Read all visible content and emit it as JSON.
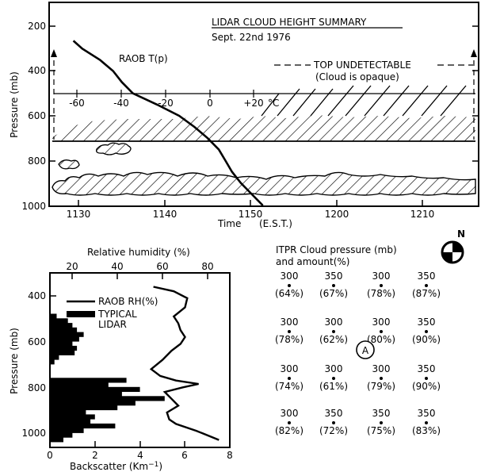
{
  "top_chart": {
    "title": "LIDAR CLOUD HEIGHT SUMMARY",
    "subtitle": "Sept. 22nd 1976",
    "ylabel": "Pressure (mb)",
    "xlabel": "Time",
    "xlabel_unit": "(E.S.T.)",
    "raob_label": "RAOB T(p)",
    "top_note_1": "TOP UNDETECTABLE",
    "top_note_2": "(Cloud is opaque)",
    "temp_unit": "°C",
    "y_ticks": [
      "200",
      "400",
      "600",
      "800",
      "1000"
    ],
    "x_ticks": [
      "1130",
      "1140",
      "1150",
      "1200",
      "1210"
    ],
    "temp_ticks": [
      "-60",
      "-40",
      "-20",
      "0",
      "+20"
    ]
  },
  "bottom_chart": {
    "top_axis_label": "Relative humidity (%)",
    "bottom_axis_label": "Backscatter (Km",
    "bottom_axis_exp": "−1",
    "bottom_axis_close": ")",
    "ylabel": "Pressure (mb)",
    "legend_rh": "RAOB RH(%)",
    "legend_lidar_1": "TYPICAL",
    "legend_lidar_2": "LIDAR",
    "rh_ticks": [
      "20",
      "40",
      "60",
      "80"
    ],
    "bs_ticks": [
      "0",
      "2",
      "4",
      "6",
      "8"
    ],
    "y_ticks": [
      "400",
      "600",
      "800",
      "1000"
    ]
  },
  "itpr": {
    "title_1": "ITPR Cloud pressure (mb)",
    "title_2": "and amount(%)",
    "north_label": "N",
    "marker_label": "A",
    "rows": [
      [
        [
          "300",
          "(64%)"
        ],
        [
          "350",
          "(67%)"
        ],
        [
          "300",
          "(78%)"
        ],
        [
          "350",
          "(87%)"
        ]
      ],
      [
        [
          "300",
          "(78%)"
        ],
        [
          "300",
          "(62%)"
        ],
        [
          "300",
          "(80%)"
        ],
        [
          "350",
          "(90%)"
        ]
      ],
      [
        [
          "300",
          "(74%)"
        ],
        [
          "300",
          "(61%)"
        ],
        [
          "300",
          "(79%)"
        ],
        [
          "350",
          "(90%)"
        ]
      ],
      [
        [
          "300",
          "(82%)"
        ],
        [
          "350",
          "(72%)"
        ],
        [
          "350",
          "(75%)"
        ],
        [
          "350",
          "(83%)"
        ]
      ]
    ]
  },
  "chart_data": [
    {
      "type": "line",
      "title": "LIDAR CLOUD HEIGHT SUMMARY",
      "subtitle": "Sept. 22nd 1976",
      "xlabel": "Time (E.S.T.)",
      "ylabel": "Pressure (mb)",
      "y_inverted": true,
      "ylim": [
        1000,
        150
      ],
      "x_ticks": [
        "1130",
        "1140",
        "1150",
        "1200",
        "1210"
      ],
      "series": [
        {
          "name": "RAOB T(p)",
          "x_unit": "°C",
          "xlim": [
            -70,
            30
          ],
          "points": [
            [
              -62,
              265
            ],
            [
              -58,
              300
            ],
            [
              -50,
              350
            ],
            [
              -44,
              400
            ],
            [
              -40,
              450
            ],
            [
              -35,
              500
            ],
            [
              -24,
              550
            ],
            [
              -14,
              600
            ],
            [
              -7,
              650
            ],
            [
              -1,
              700
            ],
            [
              4,
              750
            ],
            [
              7,
              800
            ],
            [
              10,
              850
            ],
            [
              14,
              900
            ],
            [
              19,
              950
            ],
            [
              24,
              1000
            ]
          ]
        }
      ],
      "cloud_layers": [
        {
          "type": "opaque top layer",
          "time_start": "1127",
          "time_end": "1215",
          "pressure_base_mb": 700,
          "pressure_top_mb": 500
        },
        {
          "type": "small cell",
          "pressure_mb": 760
        },
        {
          "type": "cell",
          "pressure_mb": 820
        },
        {
          "type": "lower layer",
          "time_start": "1127",
          "time_end": "1215",
          "pressure_base_mb": 950,
          "pressure_top_mb": 860
        }
      ]
    },
    {
      "type": "line",
      "x_top_label": "Relative humidity (%)",
      "x_top_lim": [
        10,
        90
      ],
      "x_bottom_label": "Backscatter (Km−1)",
      "x_bottom_lim": [
        0,
        8
      ],
      "ylabel": "Pressure (mb)",
      "y_inverted": true,
      "ylim": [
        1050,
        330
      ],
      "series": [
        {
          "name": "RAOB RH(%)",
          "axis": "top",
          "points": [
            [
              56,
              360
            ],
            [
              65,
              380
            ],
            [
              71,
              410
            ],
            [
              70,
              450
            ],
            [
              65,
              490
            ],
            [
              67,
              520
            ],
            [
              68,
              550
            ],
            [
              70,
              580
            ],
            [
              68,
              610
            ],
            [
              64,
              640
            ],
            [
              60,
              680
            ],
            [
              55,
              720
            ],
            [
              59,
              750
            ],
            [
              66,
              770
            ],
            [
              76,
              785
            ],
            [
              69,
              800
            ],
            [
              61,
              820
            ],
            [
              64,
              850
            ],
            [
              67,
              880
            ],
            [
              62,
              910
            ],
            [
              63,
              940
            ],
            [
              66,
              960
            ],
            [
              75,
              990
            ],
            [
              85,
              1030
            ]
          ]
        },
        {
          "name": "TYPICAL LIDAR",
          "axis": "bottom",
          "type": "bar",
          "points": [
            [
              0.3,
              490
            ],
            [
              0.8,
              510
            ],
            [
              1.0,
              530
            ],
            [
              1.2,
              550
            ],
            [
              1.5,
              570
            ],
            [
              1.3,
              590
            ],
            [
              1.0,
              610
            ],
            [
              1.2,
              630
            ],
            [
              1.1,
              650
            ],
            [
              0.4,
              670
            ],
            [
              0.2,
              690
            ],
            [
              3.4,
              770
            ],
            [
              2.6,
              790
            ],
            [
              4.0,
              810
            ],
            [
              3.2,
              830
            ],
            [
              5.1,
              850
            ],
            [
              3.8,
              870
            ],
            [
              3.0,
              890
            ],
            [
              1.6,
              910
            ],
            [
              2.0,
              930
            ],
            [
              1.8,
              950
            ],
            [
              2.9,
              970
            ],
            [
              1.5,
              990
            ],
            [
              1.0,
              1010
            ],
            [
              0.6,
              1030
            ]
          ]
        }
      ]
    }
  ]
}
